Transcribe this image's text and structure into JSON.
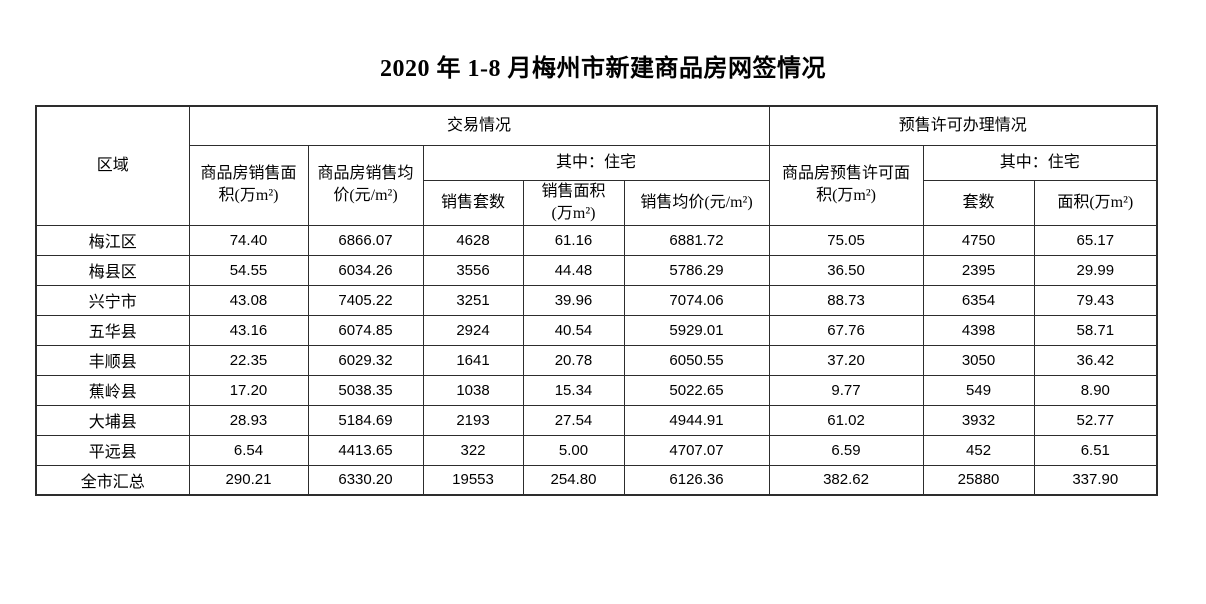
{
  "title": "2020 年 1-8 月梅州市新建商品房网签情况",
  "table": {
    "header": {
      "region": "区域",
      "transaction_group": "交易情况",
      "presale_group": "预售许可办理情况",
      "sale_area": "商品房销售面\n积(万m²)",
      "sale_avg_price": "商品房销售均\n价(元/m²)",
      "residential_sub_transaction": "其中：住宅",
      "sale_units": "销售套数",
      "res_sale_area": "销售面积\n(万m²)",
      "res_avg_price": "销售均价(元/m²)",
      "presale_area": "商品房预售许可面\n积(万m²)",
      "residential_sub_presale": "其中：住宅",
      "presale_units": "套数",
      "presale_res_area": "面积(万m²)"
    },
    "rows": [
      {
        "region": "梅江区",
        "values": [
          "74.40",
          "6866.07",
          "4628",
          "61.16",
          "6881.72",
          "75.05",
          "4750",
          "65.17"
        ]
      },
      {
        "region": "梅县区",
        "values": [
          "54.55",
          "6034.26",
          "3556",
          "44.48",
          "5786.29",
          "36.50",
          "2395",
          "29.99"
        ]
      },
      {
        "region": "兴宁市",
        "values": [
          "43.08",
          "7405.22",
          "3251",
          "39.96",
          "7074.06",
          "88.73",
          "6354",
          "79.43"
        ]
      },
      {
        "region": "五华县",
        "values": [
          "43.16",
          "6074.85",
          "2924",
          "40.54",
          "5929.01",
          "67.76",
          "4398",
          "58.71"
        ]
      },
      {
        "region": "丰顺县",
        "values": [
          "22.35",
          "6029.32",
          "1641",
          "20.78",
          "6050.55",
          "37.20",
          "3050",
          "36.42"
        ]
      },
      {
        "region": "蕉岭县",
        "values": [
          "17.20",
          "5038.35",
          "1038",
          "15.34",
          "5022.65",
          "9.77",
          "549",
          "8.90"
        ]
      },
      {
        "region": "大埔县",
        "values": [
          "28.93",
          "5184.69",
          "2193",
          "27.54",
          "4944.91",
          "61.02",
          "3932",
          "52.77"
        ]
      },
      {
        "region": "平远县",
        "values": [
          "6.54",
          "4413.65",
          "322",
          "5.00",
          "4707.07",
          "6.59",
          "452",
          "6.51"
        ]
      },
      {
        "region": "全市汇总",
        "values": [
          "290.21",
          "6330.20",
          "19553",
          "254.80",
          "6126.36",
          "382.62",
          "25880",
          "337.90"
        ]
      }
    ]
  }
}
